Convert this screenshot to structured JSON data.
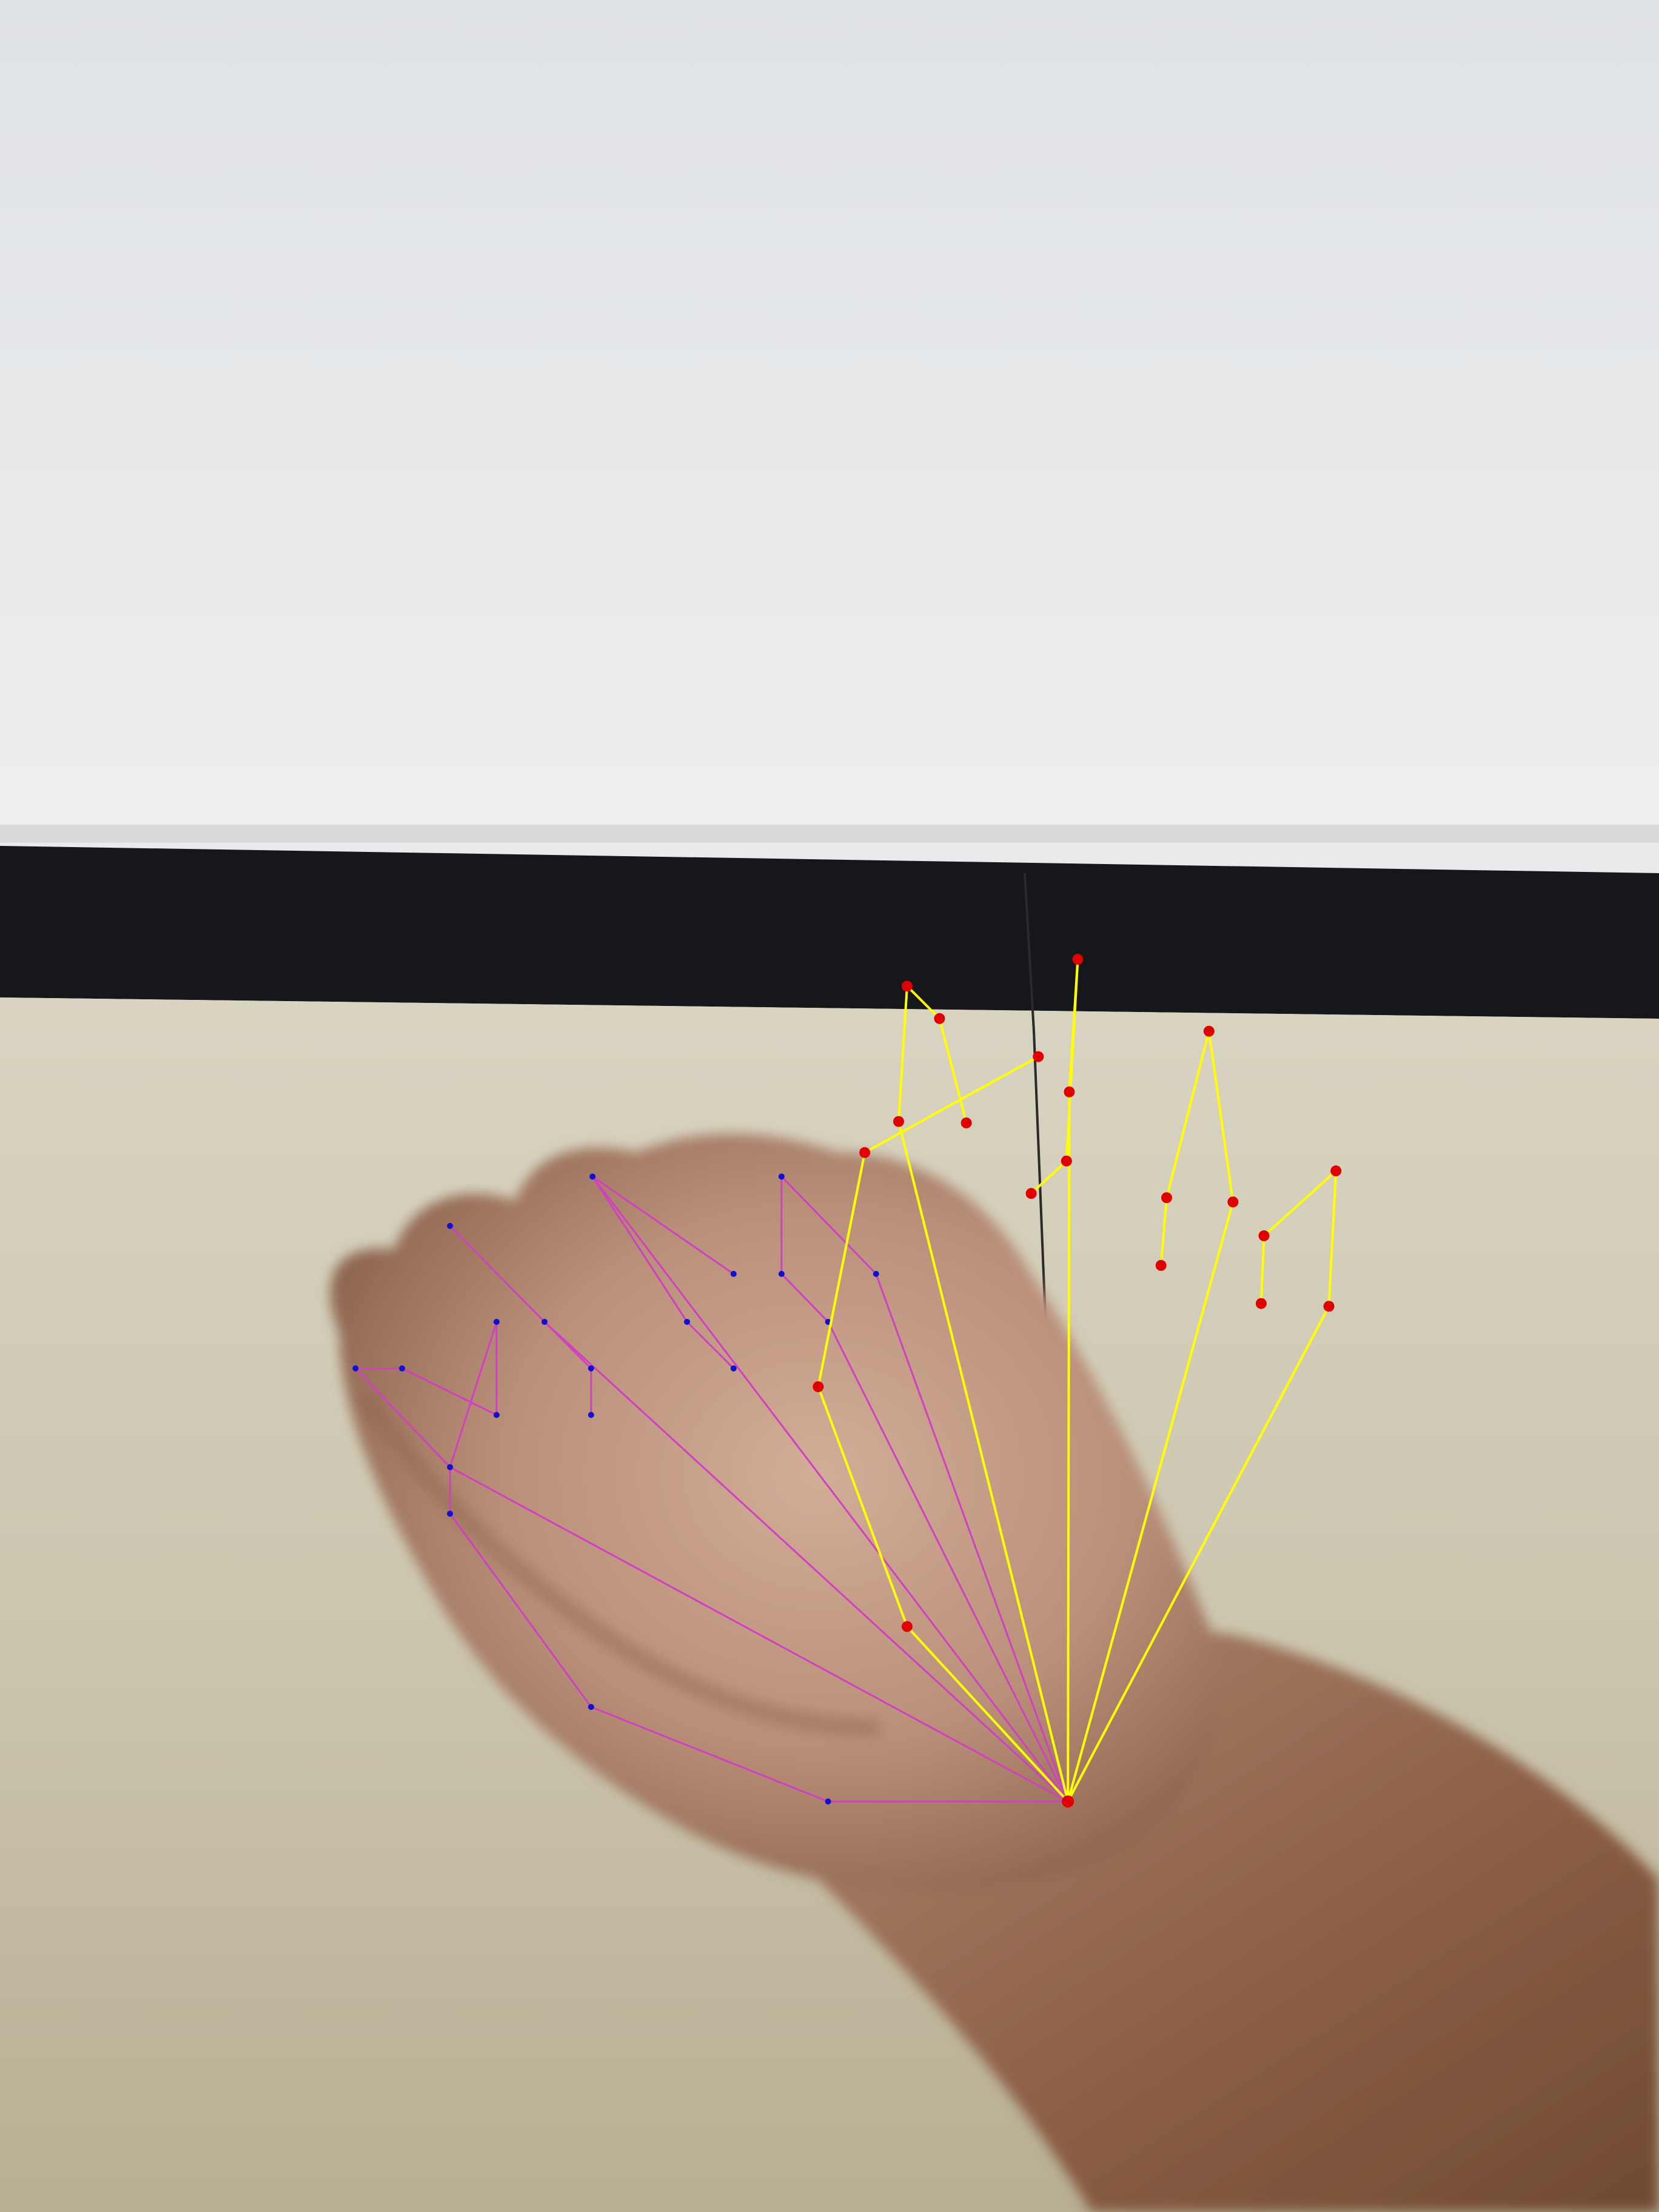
{
  "scene": {
    "description_free": true,
    "colors": {
      "wall": "#e6e8ea",
      "baseboard": "#141518",
      "floor": "#d2cdb8",
      "skin_light": "#c9a58e",
      "skin_dark": "#7a5236",
      "predicted_keypoint": "#e00000",
      "predicted_skeleton": "#ffff00",
      "reference_keypoint": "#1010d0",
      "reference_skeleton": "#d040c0"
    }
  },
  "overlays": {
    "predicted_hand": {
      "keypoints_count": 21
    },
    "reference_hand": {
      "keypoints_count": 21
    }
  }
}
